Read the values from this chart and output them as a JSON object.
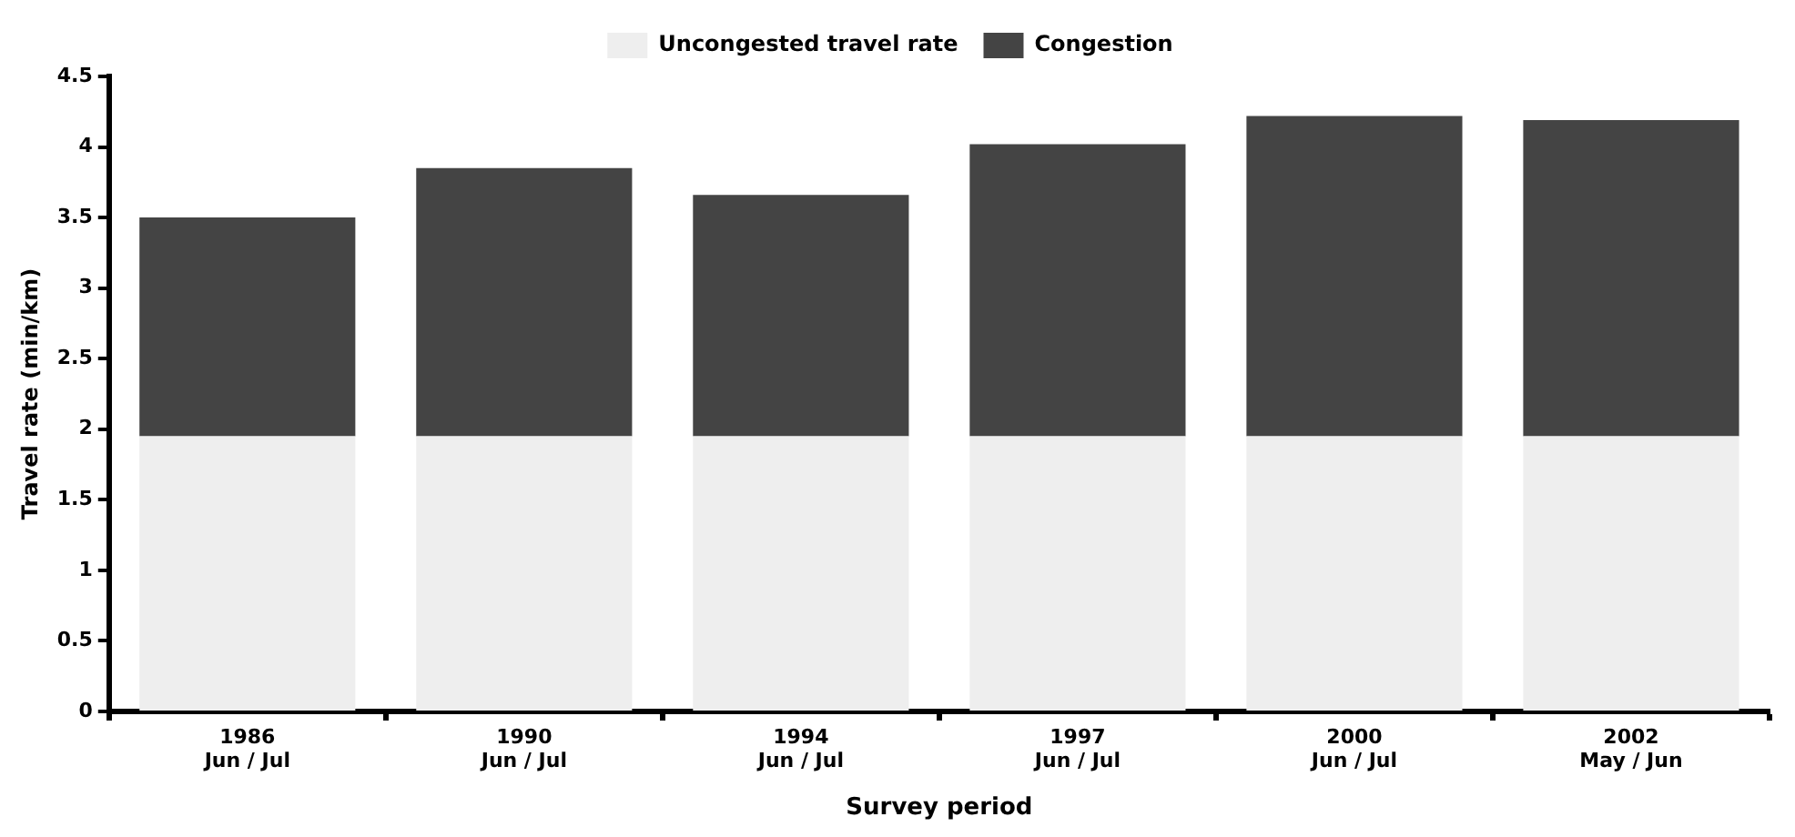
{
  "chart_data": {
    "type": "bar",
    "stacked": true,
    "xlabel": "Survey period",
    "ylabel": "Travel rate (min/km)",
    "categories": [
      "1986\nJun / Jul",
      "1990\nJun / Jul",
      "1994\nJun / Jul",
      "1997\nJun / Jul",
      "2000\nJun / Jul",
      "2002\nMay / Jun"
    ],
    "series": [
      {
        "name": "Uncongested travel rate",
        "color": "#eeeeee",
        "values": [
          1.95,
          1.95,
          1.95,
          1.95,
          1.95,
          1.95
        ]
      },
      {
        "name": "Congestion",
        "color": "#444444",
        "values": [
          1.55,
          1.9,
          1.71,
          2.07,
          2.27,
          2.24
        ]
      }
    ],
    "ylim": [
      0,
      4.5
    ],
    "yticks": [
      0,
      0.5,
      1,
      1.5,
      2,
      2.5,
      3,
      3.5,
      4,
      4.5
    ],
    "grid": false,
    "legend": "top"
  }
}
